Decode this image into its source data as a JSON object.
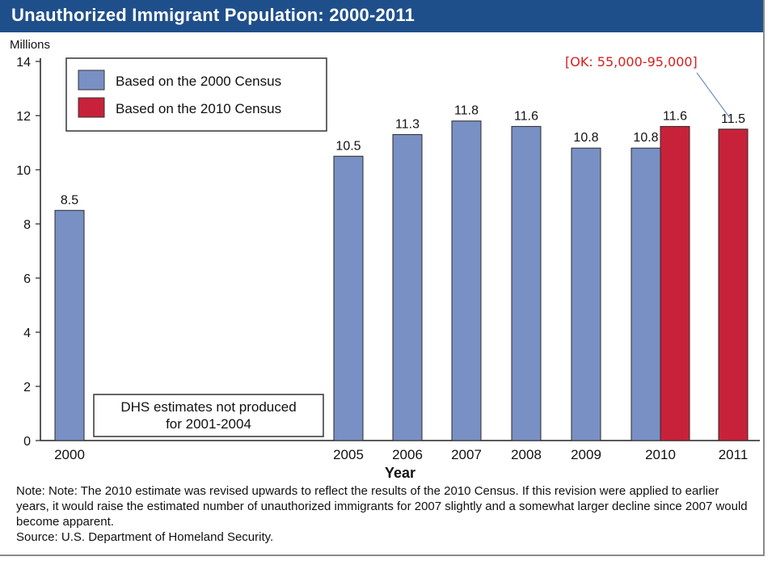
{
  "title": "Unauthorized Immigrant Population:  2000-2011",
  "annotation": "[OK:  55,000-95,000]",
  "no_data_box": {
    "line1": "DHS estimates not produced",
    "line2": "for 2001-2004"
  },
  "note": {
    "text": "Note:  Note: The 2010 estimate was revised upwards to reflect the results of the 2010 Census. If this revision were applied to earlier years, it would raise the estimated number of unauthorized immigrants for 2007 slightly and a somewhat larger decline since 2007 would become apparent.",
    "source": "Source:  U.S. Department of Homeland Security."
  },
  "colors": {
    "title_bar": "#1f4f8b",
    "census_2000": "#7990c4",
    "census_2010": "#c8223a",
    "annotation": "#d42020"
  },
  "chart_data": {
    "type": "bar",
    "title": "Unauthorized Immigrant Population:  2000-2011",
    "ylabel": "Millions",
    "xlabel": "Year",
    "ylim": [
      0,
      14
    ],
    "yticks": [
      0,
      2,
      4,
      6,
      8,
      10,
      12,
      14
    ],
    "grid": false,
    "legend_position": "top-left",
    "categories": [
      "2000",
      "2005",
      "2006",
      "2007",
      "2008",
      "2009",
      "2010",
      "2011"
    ],
    "series": [
      {
        "name": "Based on the 2000 Census",
        "color": "#7990c4",
        "values": [
          8.5,
          10.5,
          11.3,
          11.8,
          11.6,
          10.8,
          10.8,
          null
        ],
        "labels": [
          "8.5",
          "10.5",
          "11.3",
          "11.8",
          "11.6",
          "10.8",
          "10.8",
          null
        ]
      },
      {
        "name": "Based on the 2010 Census",
        "color": "#c8223a",
        "values": [
          null,
          null,
          null,
          null,
          null,
          null,
          11.6,
          11.5
        ],
        "labels": [
          null,
          null,
          null,
          null,
          null,
          null,
          "11.6",
          "11.5"
        ]
      }
    ]
  }
}
